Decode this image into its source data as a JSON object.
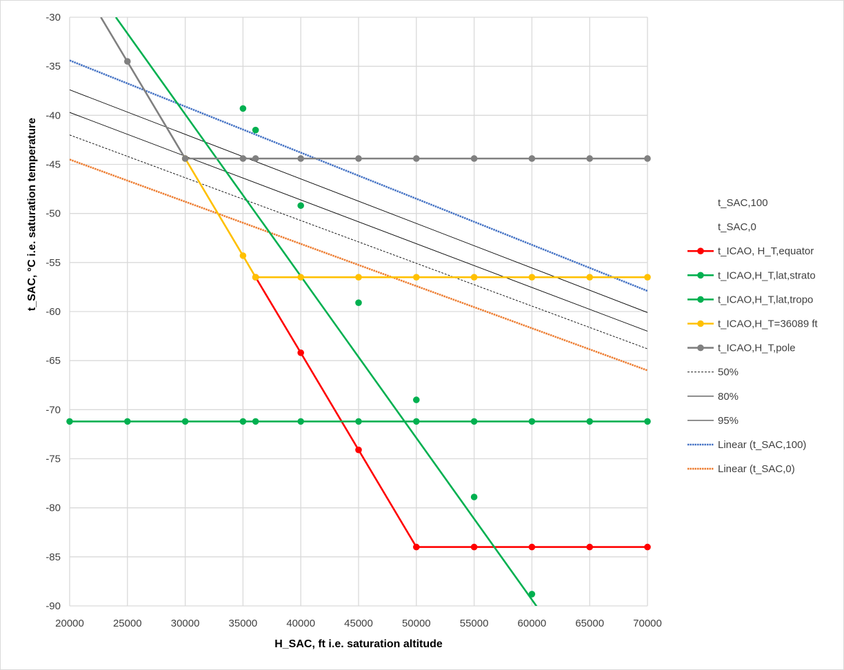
{
  "chart_data": {
    "type": "line",
    "title": "",
    "xlabel": "H_SAC, ft   i.e.  saturation altitude",
    "ylabel": "t_SAC, °C   i.e.   saturation temperature",
    "xlim": [
      20000,
      70000
    ],
    "ylim": [
      -90,
      -30
    ],
    "x_ticks": [
      20000,
      25000,
      30000,
      35000,
      40000,
      45000,
      50000,
      55000,
      60000,
      65000,
      70000
    ],
    "y_ticks": [
      -30,
      -35,
      -40,
      -45,
      -50,
      -55,
      -60,
      -65,
      -70,
      -75,
      -80,
      -85,
      -90
    ],
    "grid": true,
    "legend_position": "right",
    "legend": [
      {
        "label": "t_SAC,100",
        "color": "#ffffff",
        "style": "none"
      },
      {
        "label": "t_SAC,0",
        "color": "#ffffff",
        "style": "none"
      },
      {
        "label": "t_ICAO, H_T,equator",
        "color": "#ff0000",
        "style": "line-marker"
      },
      {
        "label": "t_ICAO,H_T,lat,strato",
        "color": "#00b050",
        "style": "line-marker"
      },
      {
        "label": "t_ICAO,H_T,lat,tropo",
        "color": "#00b050",
        "style": "line-marker"
      },
      {
        "label": "t_ICAO,H_T=36089 ft",
        "color": "#ffc000",
        "style": "line-marker"
      },
      {
        "label": "t_ICAO,H_T,pole",
        "color": "#808080",
        "style": "line-marker"
      },
      {
        "label": "50%",
        "color": "#000000",
        "style": "dotted"
      },
      {
        "label": "80%",
        "color": "#000000",
        "style": "thin"
      },
      {
        "label": "95%",
        "color": "#000000",
        "style": "thin"
      },
      {
        "label": "Linear (t_SAC,100)",
        "color": "#4472c4",
        "style": "dotted-thick"
      },
      {
        "label": "Linear (t_SAC,0)",
        "color": "#ed7d31",
        "style": "dotted-thick"
      }
    ],
    "series": [
      {
        "name": "t_ICAO, H_T,equator",
        "color": "#ff0000",
        "markers": true,
        "points": [
          [
            36089,
            -56.5
          ],
          [
            40000,
            -64.2
          ],
          [
            45000,
            -74.1
          ],
          [
            50000,
            -84
          ],
          [
            55000,
            -84
          ],
          [
            60000,
            -84
          ],
          [
            65000,
            -84
          ],
          [
            70000,
            -84
          ]
        ]
      },
      {
        "name": "t_ICAO,H_T,lat,strato",
        "color": "#00b050",
        "markers": true,
        "points": [
          [
            20000,
            -71.2
          ],
          [
            25000,
            -71.2
          ],
          [
            30000,
            -71.2
          ],
          [
            35000,
            -71.2
          ],
          [
            36089,
            -71.2
          ],
          [
            40000,
            -71.2
          ],
          [
            45000,
            -71.2
          ],
          [
            50000,
            -71.2
          ],
          [
            55000,
            -71.2
          ],
          [
            60000,
            -71.2
          ],
          [
            65000,
            -71.2
          ],
          [
            70000,
            -71.2
          ]
        ]
      },
      {
        "name": "t_ICAO,H_T,lat,tropo",
        "color": "#00b050",
        "markers": true,
        "line_points": [
          [
            24000,
            -30
          ],
          [
            60500,
            -90.2
          ]
        ],
        "points": [
          [
            35000,
            -39.3
          ],
          [
            36089,
            -41.5
          ],
          [
            40000,
            -49.2
          ],
          [
            45000,
            -59.1
          ],
          [
            50000,
            -69
          ],
          [
            55000,
            -78.9
          ],
          [
            60000,
            -88.8
          ]
        ]
      },
      {
        "name": "t_ICAO,H_T=36089 ft",
        "color": "#ffc000",
        "markers": true,
        "points": [
          [
            30000,
            -44.4
          ],
          [
            35000,
            -54.3
          ],
          [
            36089,
            -56.5
          ],
          [
            40000,
            -56.5
          ],
          [
            45000,
            -56.5
          ],
          [
            50000,
            -56.5
          ],
          [
            55000,
            -56.5
          ],
          [
            60000,
            -56.5
          ],
          [
            65000,
            -56.5
          ],
          [
            70000,
            -56.5
          ]
        ]
      },
      {
        "name": "t_ICAO,H_T,pole",
        "color": "#808080",
        "markers": true,
        "line_points": [
          [
            22700,
            -30
          ],
          [
            30000,
            -44.4
          ]
        ],
        "points": [
          [
            25000,
            -34.5
          ],
          [
            30000,
            -44.4
          ],
          [
            35000,
            -44.4
          ],
          [
            36089,
            -44.4
          ],
          [
            40000,
            -44.4
          ],
          [
            45000,
            -44.4
          ],
          [
            50000,
            -44.4
          ],
          [
            55000,
            -44.4
          ],
          [
            60000,
            -44.4
          ],
          [
            65000,
            -44.4
          ],
          [
            70000,
            -44.4
          ]
        ]
      },
      {
        "name": "50%",
        "color": "#000000",
        "style": "dotted",
        "points": [
          [
            20000,
            -42
          ],
          [
            70000,
            -63.8
          ]
        ]
      },
      {
        "name": "80%",
        "color": "#000000",
        "style": "thin",
        "points": [
          [
            20000,
            -39.7
          ],
          [
            70000,
            -62
          ]
        ]
      },
      {
        "name": "95%",
        "color": "#000000",
        "style": "thin",
        "points": [
          [
            20000,
            -37.4
          ],
          [
            70000,
            -60.1
          ]
        ]
      },
      {
        "name": "Linear (t_SAC,100)",
        "color": "#4472c4",
        "style": "dotted-thick",
        "points": [
          [
            20000,
            -34.4
          ],
          [
            70000,
            -57.9
          ]
        ]
      },
      {
        "name": "Linear (t_SAC,0)",
        "color": "#ed7d31",
        "style": "dotted-thick",
        "points": [
          [
            20000,
            -44.5
          ],
          [
            70000,
            -66
          ]
        ]
      }
    ]
  }
}
